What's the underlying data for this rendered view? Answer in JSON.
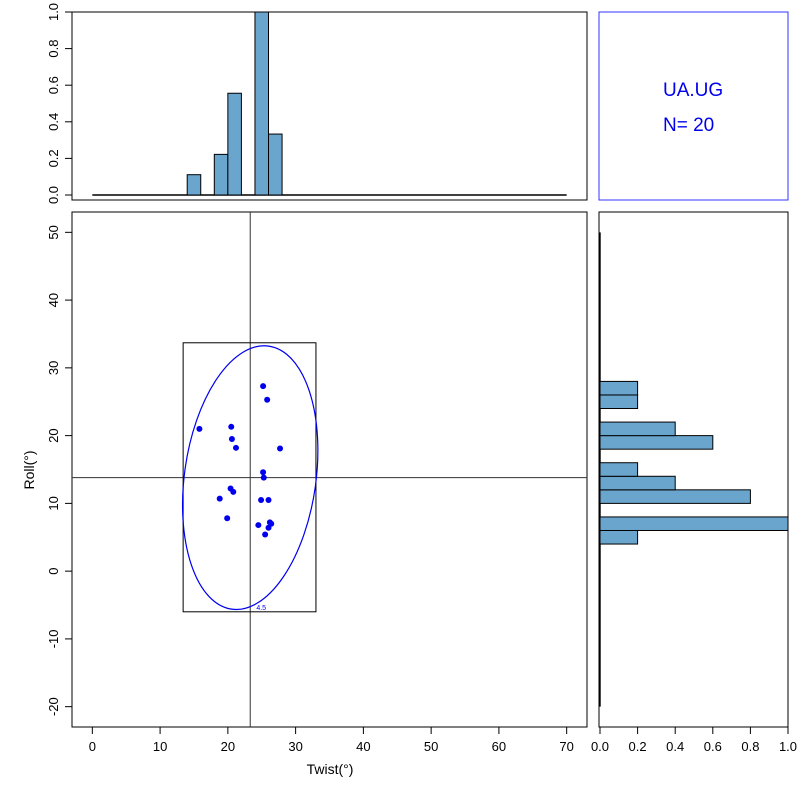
{
  "colors": {
    "bar_fill": "#6aa5cd",
    "point": "#0000ee",
    "ellipse": "#0000ee",
    "info_text": "#0000ee",
    "info_border": "#3333ff"
  },
  "info_panel": {
    "label": "UA.UG",
    "count_text": "N=  20"
  },
  "chart_data": [
    {
      "id": "scatter",
      "type": "scatter",
      "xlabel": "Twist(°)",
      "ylabel": "Roll(°)",
      "xlim": [
        -3,
        73
      ],
      "ylim": [
        -23,
        53
      ],
      "xticks": [
        0,
        10,
        20,
        30,
        40,
        50,
        60,
        70
      ],
      "yticks": [
        -20,
        -10,
        0,
        10,
        20,
        30,
        40,
        50
      ],
      "points": [
        {
          "x": 15.8,
          "y": 21.0
        },
        {
          "x": 20.5,
          "y": 21.3
        },
        {
          "x": 20.6,
          "y": 19.5
        },
        {
          "x": 21.2,
          "y": 18.2
        },
        {
          "x": 25.2,
          "y": 27.3
        },
        {
          "x": 25.8,
          "y": 25.3
        },
        {
          "x": 27.7,
          "y": 18.1
        },
        {
          "x": 25.2,
          "y": 14.6
        },
        {
          "x": 25.3,
          "y": 13.8
        },
        {
          "x": 20.4,
          "y": 12.2
        },
        {
          "x": 20.8,
          "y": 11.7
        },
        {
          "x": 18.8,
          "y": 10.7
        },
        {
          "x": 24.9,
          "y": 10.5
        },
        {
          "x": 26.0,
          "y": 10.5
        },
        {
          "x": 19.9,
          "y": 7.8
        },
        {
          "x": 24.5,
          "y": 6.8
        },
        {
          "x": 26.2,
          "y": 7.2
        },
        {
          "x": 26.4,
          "y": 7.0
        },
        {
          "x": 26.0,
          "y": 6.4
        },
        {
          "x": 25.5,
          "y": 5.4
        }
      ],
      "mean_lines": {
        "x": 23.3,
        "y": 13.8
      },
      "bounding_box": {
        "x_min": 13.4,
        "x_max": 33.0,
        "y_min": -6.0,
        "y_max": 33.7
      },
      "ellipse": {
        "cx": 23.3,
        "cy": 13.8,
        "rx": 9.7,
        "ry": 19.6,
        "rotation_deg": 8,
        "label": "4.5"
      }
    },
    {
      "id": "twist_hist",
      "type": "bar",
      "title": "",
      "bin_width": 2,
      "bin_start": 0,
      "bin_end": 70,
      "ylim": [
        0,
        1
      ],
      "yticks": [
        "0.0",
        "0.2",
        "0.4",
        "0.6",
        "0.8",
        "1.0"
      ],
      "bins": [
        {
          "start": 14,
          "value": 0.111
        },
        {
          "start": 18,
          "value": 0.222
        },
        {
          "start": 20,
          "value": 0.556
        },
        {
          "start": 24,
          "value": 1.0
        },
        {
          "start": 26,
          "value": 0.333
        }
      ]
    },
    {
      "id": "roll_hist",
      "type": "bar",
      "orientation": "horizontal",
      "bin_width": 2,
      "bin_start": -20,
      "bin_end": 50,
      "xlim": [
        0,
        1
      ],
      "xticks": [
        "0.0",
        "0.2",
        "0.4",
        "0.6",
        "0.8",
        "1.0"
      ],
      "bins": [
        {
          "start": 4,
          "value": 0.2
        },
        {
          "start": 6,
          "value": 1.0
        },
        {
          "start": 10,
          "value": 0.8
        },
        {
          "start": 12,
          "value": 0.4
        },
        {
          "start": 14,
          "value": 0.2
        },
        {
          "start": 18,
          "value": 0.6
        },
        {
          "start": 20,
          "value": 0.4
        },
        {
          "start": 24,
          "value": 0.2
        },
        {
          "start": 26,
          "value": 0.2
        }
      ]
    }
  ]
}
